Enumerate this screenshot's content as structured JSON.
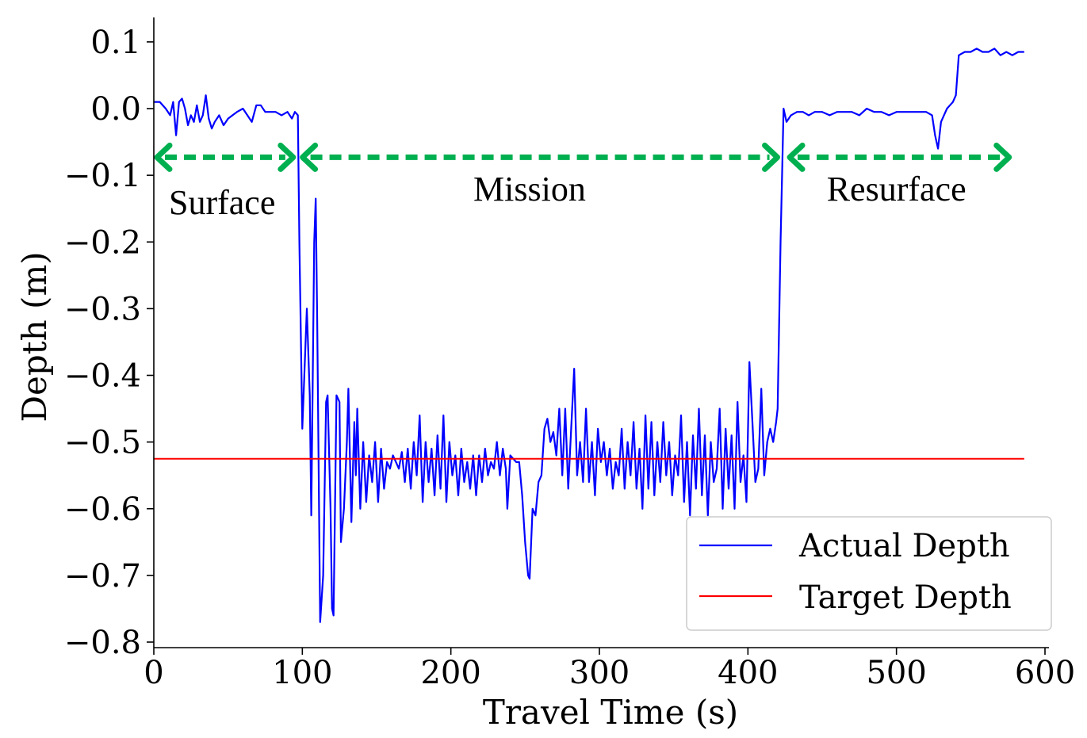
{
  "chart_data": {
    "type": "line",
    "title": "",
    "xlabel": "Travel Time (s)",
    "ylabel": "Depth (m)",
    "xlim": [
      0,
      600
    ],
    "ylim": [
      -0.8,
      0.12
    ],
    "xticks": [
      0,
      100,
      200,
      300,
      400,
      500,
      600
    ],
    "xtick_labels": [
      "0",
      "100",
      "200",
      "300",
      "400",
      "500",
      "600"
    ],
    "yticks": [
      0.1,
      0.0,
      -0.1,
      -0.2,
      -0.3,
      -0.4,
      -0.5,
      -0.6,
      -0.7,
      -0.8
    ],
    "ytick_labels": [
      "0.1",
      "0.0",
      "−0.1",
      "−0.2",
      "−0.3",
      "−0.4",
      "−0.5",
      "−0.6",
      "−0.7",
      "−0.8"
    ],
    "grid": false,
    "legend_position": "lower-right",
    "series": [
      {
        "name": "Actual Depth",
        "color": "#0000ff",
        "points": [
          [
            0,
            0.01
          ],
          [
            4,
            0.01
          ],
          [
            8,
            0.0
          ],
          [
            11,
            -0.01
          ],
          [
            13,
            0.01
          ],
          [
            15,
            -0.04
          ],
          [
            17,
            0.01
          ],
          [
            19,
            0.015
          ],
          [
            21,
            0.0
          ],
          [
            23,
            -0.025
          ],
          [
            25,
            -0.01
          ],
          [
            27,
            -0.02
          ],
          [
            29,
            0.005
          ],
          [
            31,
            -0.02
          ],
          [
            33,
            -0.01
          ],
          [
            35,
            0.02
          ],
          [
            37,
            -0.015
          ],
          [
            39,
            -0.03
          ],
          [
            41,
            -0.02
          ],
          [
            44,
            -0.01
          ],
          [
            47,
            -0.025
          ],
          [
            50,
            -0.015
          ],
          [
            53,
            -0.01
          ],
          [
            56,
            -0.005
          ],
          [
            60,
            0.0
          ],
          [
            63,
            -0.01
          ],
          [
            66,
            -0.02
          ],
          [
            69,
            0.005
          ],
          [
            72,
            0.005
          ],
          [
            75,
            -0.005
          ],
          [
            78,
            -0.005
          ],
          [
            82,
            -0.005
          ],
          [
            86,
            -0.01
          ],
          [
            90,
            -0.005
          ],
          [
            93,
            -0.015
          ],
          [
            95,
            -0.005
          ],
          [
            97,
            -0.01
          ],
          [
            98,
            -0.2
          ],
          [
            100,
            -0.48
          ],
          [
            103,
            -0.3
          ],
          [
            105,
            -0.43
          ],
          [
            106,
            -0.61
          ],
          [
            108,
            -0.2
          ],
          [
            109,
            -0.135
          ],
          [
            110,
            -0.32
          ],
          [
            112,
            -0.77
          ],
          [
            114,
            -0.7
          ],
          [
            116,
            -0.44
          ],
          [
            117,
            -0.43
          ],
          [
            119,
            -0.6
          ],
          [
            120,
            -0.75
          ],
          [
            121,
            -0.76
          ],
          [
            123,
            -0.43
          ],
          [
            125,
            -0.44
          ],
          [
            126,
            -0.65
          ],
          [
            128,
            -0.6
          ],
          [
            130,
            -0.5
          ],
          [
            131,
            -0.42
          ],
          [
            133,
            -0.62
          ],
          [
            135,
            -0.47
          ],
          [
            136,
            -0.55
          ],
          [
            137,
            -0.45
          ],
          [
            139,
            -0.6
          ],
          [
            141,
            -0.5
          ],
          [
            143,
            -0.59
          ],
          [
            145,
            -0.52
          ],
          [
            147,
            -0.56
          ],
          [
            149,
            -0.5
          ],
          [
            151,
            -0.59
          ],
          [
            153,
            -0.51
          ],
          [
            155,
            -0.57
          ],
          [
            157,
            -0.53
          ],
          [
            159,
            -0.54
          ],
          [
            161,
            -0.52
          ],
          [
            163,
            -0.53
          ],
          [
            165,
            -0.54
          ],
          [
            167,
            -0.515
          ],
          [
            169,
            -0.56
          ],
          [
            171,
            -0.51
          ],
          [
            173,
            -0.57
          ],
          [
            175,
            -0.5
          ],
          [
            177,
            -0.55
          ],
          [
            179,
            -0.46
          ],
          [
            181,
            -0.59
          ],
          [
            183,
            -0.5
          ],
          [
            185,
            -0.56
          ],
          [
            187,
            -0.51
          ],
          [
            189,
            -0.58
          ],
          [
            191,
            -0.49
          ],
          [
            193,
            -0.57
          ],
          [
            195,
            -0.46
          ],
          [
            197,
            -0.59
          ],
          [
            199,
            -0.5
          ],
          [
            201,
            -0.55
          ],
          [
            203,
            -0.52
          ],
          [
            205,
            -0.58
          ],
          [
            207,
            -0.51
          ],
          [
            209,
            -0.56
          ],
          [
            211,
            -0.53
          ],
          [
            213,
            -0.57
          ],
          [
            215,
            -0.52
          ],
          [
            217,
            -0.58
          ],
          [
            219,
            -0.52
          ],
          [
            221,
            -0.56
          ],
          [
            223,
            -0.51
          ],
          [
            225,
            -0.55
          ],
          [
            227,
            -0.53
          ],
          [
            229,
            -0.54
          ],
          [
            231,
            -0.5
          ],
          [
            233,
            -0.55
          ],
          [
            235,
            -0.51
          ],
          [
            237,
            -0.54
          ],
          [
            238,
            -0.6
          ],
          [
            240,
            -0.52
          ],
          [
            242,
            -0.525
          ],
          [
            244,
            -0.53
          ],
          [
            246,
            -0.53
          ],
          [
            248,
            -0.58
          ],
          [
            250,
            -0.65
          ],
          [
            252,
            -0.7
          ],
          [
            253,
            -0.705
          ],
          [
            255,
            -0.6
          ],
          [
            257,
            -0.61
          ],
          [
            259,
            -0.56
          ],
          [
            261,
            -0.55
          ],
          [
            263,
            -0.48
          ],
          [
            265,
            -0.465
          ],
          [
            267,
            -0.5
          ],
          [
            269,
            -0.485
          ],
          [
            271,
            -0.52
          ],
          [
            273,
            -0.45
          ],
          [
            275,
            -0.55
          ],
          [
            277,
            -0.45
          ],
          [
            279,
            -0.57
          ],
          [
            281,
            -0.48
          ],
          [
            283,
            -0.39
          ],
          [
            285,
            -0.55
          ],
          [
            287,
            -0.5
          ],
          [
            289,
            -0.56
          ],
          [
            291,
            -0.45
          ],
          [
            293,
            -0.56
          ],
          [
            295,
            -0.5
          ],
          [
            297,
            -0.58
          ],
          [
            299,
            -0.48
          ],
          [
            301,
            -0.53
          ],
          [
            303,
            -0.5
          ],
          [
            305,
            -0.55
          ],
          [
            307,
            -0.51
          ],
          [
            309,
            -0.57
          ],
          [
            311,
            -0.53
          ],
          [
            313,
            -0.55
          ],
          [
            315,
            -0.48
          ],
          [
            317,
            -0.57
          ],
          [
            319,
            -0.5
          ],
          [
            321,
            -0.55
          ],
          [
            323,
            -0.47
          ],
          [
            325,
            -0.57
          ],
          [
            327,
            -0.51
          ],
          [
            329,
            -0.6
          ],
          [
            331,
            -0.46
          ],
          [
            333,
            -0.57
          ],
          [
            335,
            -0.47
          ],
          [
            337,
            -0.58
          ],
          [
            339,
            -0.5
          ],
          [
            341,
            -0.56
          ],
          [
            343,
            -0.47
          ],
          [
            345,
            -0.55
          ],
          [
            347,
            -0.5
          ],
          [
            349,
            -0.58
          ],
          [
            351,
            -0.52
          ],
          [
            353,
            -0.55
          ],
          [
            355,
            -0.46
          ],
          [
            357,
            -0.59
          ],
          [
            359,
            -0.5
          ],
          [
            361,
            -0.61
          ],
          [
            363,
            -0.49
          ],
          [
            365,
            -0.57
          ],
          [
            367,
            -0.45
          ],
          [
            369,
            -0.58
          ],
          [
            371,
            -0.49
          ],
          [
            373,
            -0.61
          ],
          [
            375,
            -0.5
          ],
          [
            377,
            -0.56
          ],
          [
            379,
            -0.54
          ],
          [
            381,
            -0.45
          ],
          [
            383,
            -0.6
          ],
          [
            385,
            -0.48
          ],
          [
            387,
            -0.57
          ],
          [
            389,
            -0.49
          ],
          [
            391,
            -0.6
          ],
          [
            393,
            -0.44
          ],
          [
            395,
            -0.56
          ],
          [
            397,
            -0.52
          ],
          [
            399,
            -0.59
          ],
          [
            401,
            -0.38
          ],
          [
            403,
            -0.47
          ],
          [
            405,
            -0.56
          ],
          [
            407,
            -0.54
          ],
          [
            409,
            -0.42
          ],
          [
            411,
            -0.55
          ],
          [
            413,
            -0.5
          ],
          [
            415,
            -0.48
          ],
          [
            417,
            -0.5
          ],
          [
            419,
            -0.47
          ],
          [
            420,
            -0.45
          ],
          [
            422,
            -0.2
          ],
          [
            424,
            0.0
          ],
          [
            426,
            -0.02
          ],
          [
            429,
            -0.01
          ],
          [
            433,
            -0.005
          ],
          [
            437,
            -0.005
          ],
          [
            441,
            -0.01
          ],
          [
            445,
            -0.005
          ],
          [
            450,
            -0.005
          ],
          [
            455,
            -0.01
          ],
          [
            460,
            -0.005
          ],
          [
            465,
            -0.005
          ],
          [
            470,
            -0.005
          ],
          [
            475,
            -0.01
          ],
          [
            480,
            0.0
          ],
          [
            485,
            -0.005
          ],
          [
            490,
            -0.005
          ],
          [
            495,
            -0.01
          ],
          [
            500,
            -0.005
          ],
          [
            505,
            -0.005
          ],
          [
            510,
            -0.005
          ],
          [
            515,
            -0.005
          ],
          [
            520,
            -0.005
          ],
          [
            524,
            -0.01
          ],
          [
            526,
            -0.04
          ],
          [
            528,
            -0.06
          ],
          [
            530,
            -0.02
          ],
          [
            532,
            -0.01
          ],
          [
            534,
            0.0
          ],
          [
            536,
            0.005
          ],
          [
            538,
            0.01
          ],
          [
            540,
            0.02
          ],
          [
            542,
            0.08
          ],
          [
            546,
            0.085
          ],
          [
            550,
            0.085
          ],
          [
            554,
            0.09
          ],
          [
            558,
            0.085
          ],
          [
            562,
            0.085
          ],
          [
            566,
            0.09
          ],
          [
            570,
            0.08
          ],
          [
            574,
            0.085
          ],
          [
            578,
            0.08
          ],
          [
            582,
            0.085
          ],
          [
            586,
            0.085
          ]
        ]
      },
      {
        "name": "Target Depth",
        "color": "#ff0000",
        "points": [
          [
            0,
            -0.525
          ],
          [
            586,
            -0.525
          ]
        ]
      }
    ],
    "regions": [
      {
        "label": "Surface",
        "from": 0,
        "to": 96,
        "y": -0.073,
        "label_x": 46,
        "label_y": -0.14
      },
      {
        "label": "Mission",
        "from": 98,
        "to": 422,
        "y": -0.073,
        "label_x": 253,
        "label_y": -0.12
      },
      {
        "label": "Resurface",
        "from": 426,
        "to": 578,
        "y": -0.073,
        "label_x": 500,
        "label_y": -0.12
      }
    ],
    "annotation_color": "#00b050"
  }
}
